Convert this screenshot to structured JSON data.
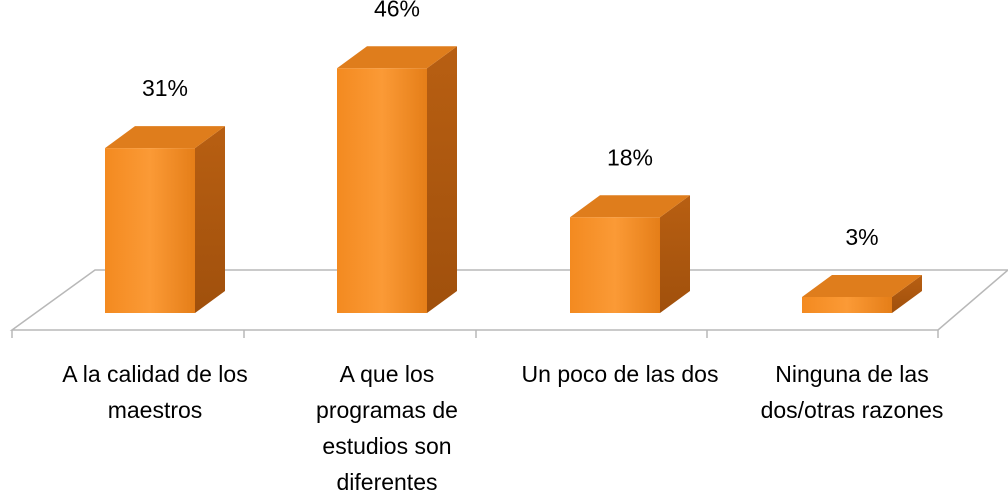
{
  "chart_data": {
    "type": "bar3d",
    "categories": [
      "A la calidad de los maestros",
      "A que los programas de estudios son diferentes",
      "Un poco de las dos",
      "Ninguna de las dos/otras razones"
    ],
    "values": [
      31,
      46,
      18,
      3
    ],
    "value_labels": [
      "31%",
      "46%",
      "18%",
      "3%"
    ],
    "color": "#f7922a"
  }
}
